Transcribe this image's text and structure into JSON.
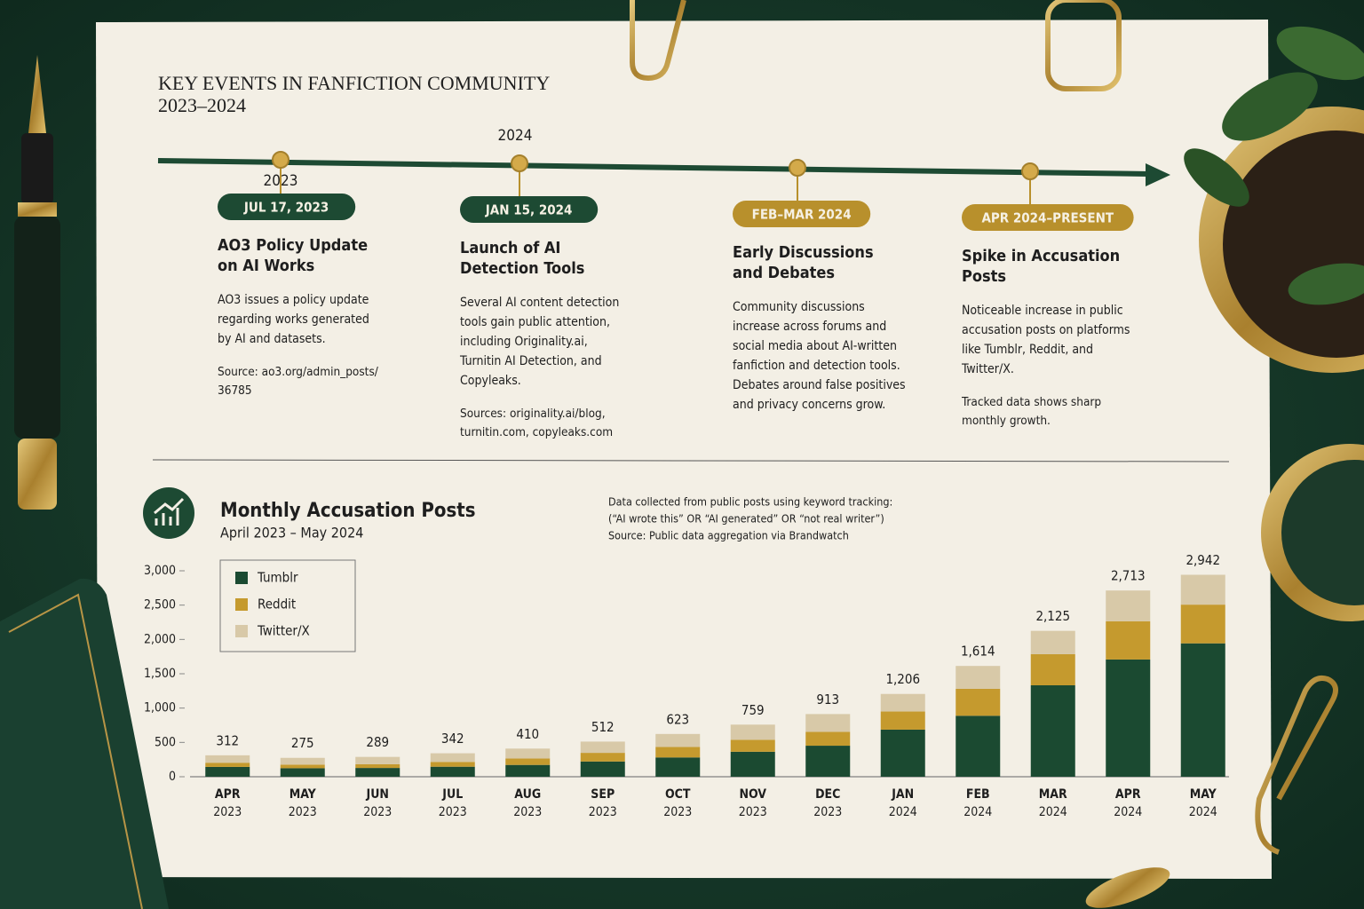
{
  "timeline": {
    "title": "KEY EVENTS IN FANFICTION COMMUNITY",
    "subtitle": "2023–2024",
    "year_labels": [
      "2023",
      "2024"
    ],
    "events": [
      {
        "date": "JUL 17, 2023",
        "color": "#1d4a33",
        "heading": [
          "AO3 Policy Update",
          "on AI Works"
        ],
        "body": [
          "AO3 issues a policy update",
          "regarding works generated",
          "by AI and datasets."
        ],
        "source": [
          "Source: ao3.org/admin_posts/",
          "36785"
        ]
      },
      {
        "date": "JAN 15, 2024",
        "color": "#1d4a33",
        "heading": [
          "Launch of AI",
          "Detection Tools"
        ],
        "body": [
          "Several AI content detection",
          "tools gain public attention,",
          "including Originality.ai,",
          "Turnitin AI Detection, and",
          "Copyleaks."
        ],
        "source": [
          "Sources: originality.ai/blog,",
          "turnitin.com, copyleaks.com"
        ]
      },
      {
        "date": "FEB–MAR 2024",
        "color": "#b8902c",
        "heading": [
          "Early Discussions",
          "and Debates"
        ],
        "body": [
          "Community discussions",
          "increase across forums and",
          "social media about AI-written",
          "fanfiction and detection tools.",
          "Debates around false positives",
          "and privacy concerns grow."
        ],
        "source": []
      },
      {
        "date": "APR 2024–PRESENT",
        "color": "#b8902c",
        "heading": [
          "Spike in Accusation",
          "Posts"
        ],
        "body": [
          "Noticeable increase in public",
          "accusation posts on platforms",
          "like Tumblr, Reddit, and",
          "Twitter/X."
        ],
        "source": [
          "Tracked data shows sharp",
          "monthly growth."
        ]
      }
    ]
  },
  "chart_data": {
    "type": "stacked_bar",
    "title": "Monthly Accusation Posts",
    "subtitle": "April 2023 – May 2024",
    "notes": [
      "Data collected from public posts using keyword tracking:",
      "(“AI wrote this” OR “AI generated” OR “not real writer”)",
      "Source: Public data aggregation via Brandwatch"
    ],
    "categories": [
      "APR",
      "MAY",
      "JUN",
      "JUL",
      "AUG",
      "SEP",
      "OCT",
      "NOV",
      "DEC",
      "JAN",
      "FEB",
      "MAR",
      "APR",
      "MAY"
    ],
    "category_years": [
      "2023",
      "2023",
      "2023",
      "2023",
      "2023",
      "2023",
      "2023",
      "2023",
      "2023",
      "2024",
      "2024",
      "2024",
      "2024",
      "2024"
    ],
    "series": [
      {
        "name": "Tumblr",
        "color": "#1b4a31",
        "values": [
          143,
          124,
          128,
          146,
          172,
          222,
          281,
          364,
          452,
          686,
          888,
          1332,
          1708,
          1943
        ]
      },
      {
        "name": "Reddit",
        "color": "#c59a2e",
        "values": [
          61,
          52,
          54,
          70,
          94,
          126,
          152,
          174,
          202,
          264,
          393,
          453,
          557,
          564
        ]
      },
      {
        "name": "Twitter/X",
        "color": "#d8c9a8",
        "values": [
          108,
          99,
          107,
          126,
          144,
          164,
          190,
          221,
          259,
          256,
          333,
          340,
          448,
          435
        ]
      }
    ],
    "totals": [
      312,
      275,
      289,
      342,
      410,
      512,
      623,
      759,
      913,
      1206,
      1614,
      2125,
      2713,
      2942
    ],
    "total_labels": [
      "312",
      "275",
      "289",
      "342",
      "410",
      "512",
      "623",
      "759",
      "913",
      "1,206",
      "1,614",
      "2,125",
      "2,713",
      "2,942"
    ],
    "ylim": [
      0,
      3000
    ],
    "yticks": [
      0,
      500,
      {
        "value": 1000,
        "label": "1,000"
      },
      {
        "value": 1500,
        "label": "1,500"
      },
      {
        "value": 2000,
        "label": "2,000"
      },
      {
        "value": 2500,
        "label": "2,500"
      },
      {
        "value": 3000,
        "label": "3,000"
      }
    ],
    "legend": "top-left"
  }
}
